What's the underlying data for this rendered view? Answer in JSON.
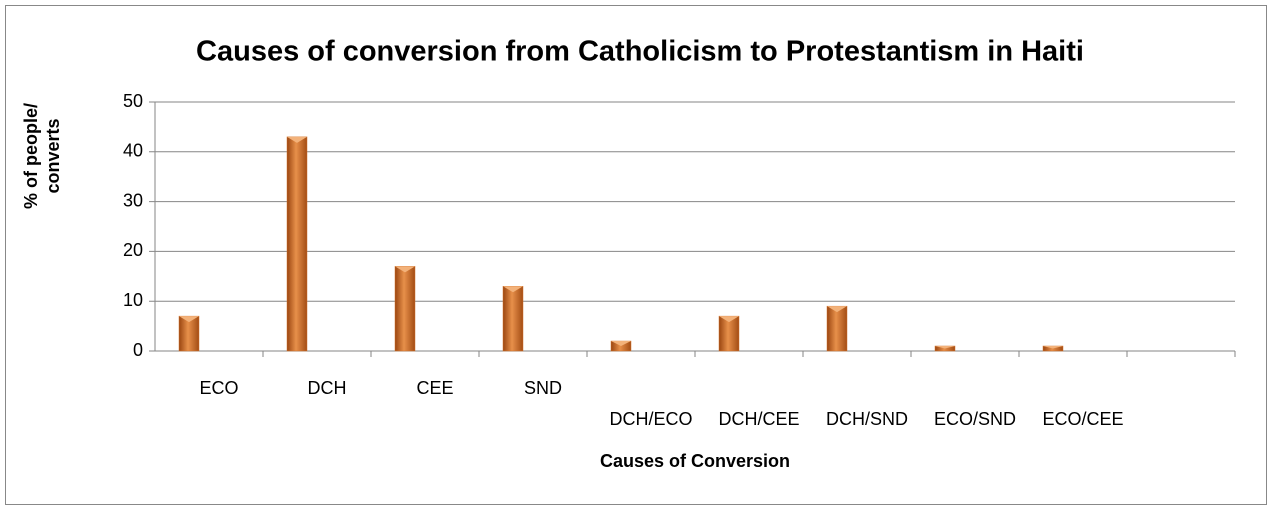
{
  "chart_data": {
    "type": "bar",
    "title": "Causes of conversion from Catholicism to Protestantism in Haiti",
    "xlabel": "Causes of Conversion",
    "ylabel": "% of people/ converts",
    "categories": [
      "ECO",
      "DCH",
      "CEE",
      "SND",
      "DCH/ECO",
      "DCH/CEE",
      "DCH/SND",
      "ECO/SND",
      "ECO/CEE",
      null
    ],
    "values": [
      7,
      43,
      17,
      13,
      2,
      7,
      9,
      1,
      1,
      null
    ],
    "color": "#d2722a",
    "ylim": [
      0,
      50
    ],
    "yticks": [
      0,
      10,
      20,
      30,
      40,
      50
    ],
    "grid": true
  }
}
